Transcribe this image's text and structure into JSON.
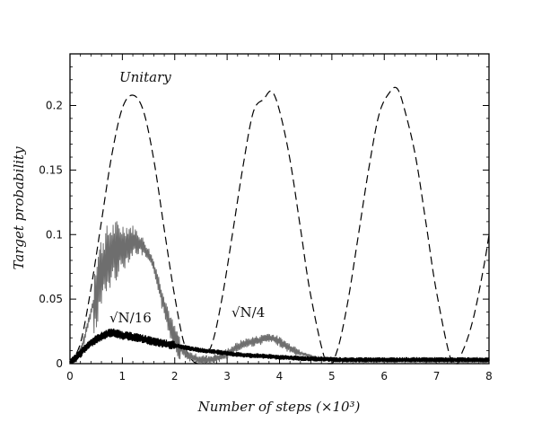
{
  "chart_data": {
    "type": "line",
    "xlabel": "Number of steps (×10³)",
    "ylabel": "Target probability",
    "xlim": [
      0,
      8
    ],
    "ylim": [
      0,
      0.24
    ],
    "xticks": [
      "0",
      "1",
      "2",
      "3",
      "4",
      "5",
      "6",
      "7",
      "8"
    ],
    "yticks": [
      "0",
      "0.05",
      "0.1",
      "0.15",
      "0.2"
    ],
    "annotations": [
      "Unitary",
      "√N/4",
      "√N/16"
    ],
    "grid": false,
    "series": [
      {
        "name": "Unitary",
        "style": "dashed",
        "color": "#000000",
        "x": [
          0,
          0.2,
          0.4,
          0.6,
          0.8,
          1.0,
          1.2,
          1.4,
          1.6,
          1.8,
          2.0,
          2.2,
          2.45,
          2.7,
          2.9,
          3.1,
          3.3,
          3.5,
          3.7,
          3.85,
          4.0,
          4.2,
          4.4,
          4.6,
          4.9,
          5.1,
          5.3,
          5.5,
          5.7,
          5.9,
          6.1,
          6.25,
          6.4,
          6.6,
          6.8,
          7.0,
          7.3,
          7.5,
          7.7,
          7.9,
          8.0
        ],
        "y": [
          0,
          0.016,
          0.058,
          0.11,
          0.162,
          0.198,
          0.208,
          0.196,
          0.158,
          0.104,
          0.052,
          0.013,
          0,
          0.014,
          0.05,
          0.1,
          0.152,
          0.195,
          0.205,
          0.211,
          0.196,
          0.158,
          0.105,
          0.052,
          0,
          0.01,
          0.047,
          0.098,
          0.15,
          0.193,
          0.21,
          0.213,
          0.195,
          0.16,
          0.108,
          0.055,
          0,
          0.01,
          0.035,
          0.075,
          0.1
        ]
      },
      {
        "name": "√N/4",
        "style": "solid-noisy",
        "color": "#6e6e6e",
        "x": [
          0,
          0.2,
          0.4,
          0.6,
          0.8,
          1.0,
          1.2,
          1.4,
          1.6,
          1.8,
          2.0,
          2.2,
          2.5,
          2.8,
          3.0,
          3.3,
          3.6,
          3.8,
          4.0,
          4.2,
          4.5,
          4.8,
          5.2,
          5.6,
          6.0,
          6.4,
          6.8,
          7.2,
          7.6,
          8.0
        ],
        "y": [
          0,
          0.01,
          0.04,
          0.07,
          0.085,
          0.09,
          0.095,
          0.09,
          0.075,
          0.045,
          0.02,
          0.008,
          0.003,
          0.004,
          0.008,
          0.015,
          0.018,
          0.02,
          0.017,
          0.012,
          0.007,
          0.004,
          0.003,
          0.002,
          0.002,
          0.002,
          0.002,
          0.002,
          0.002,
          0.002
        ]
      },
      {
        "name": "√N/16",
        "style": "solid-thick-noisy",
        "color": "#000000",
        "x": [
          0,
          0.2,
          0.4,
          0.6,
          0.8,
          1.0,
          1.3,
          1.6,
          2.0,
          2.4,
          2.8,
          3.2,
          3.6,
          4.0,
          4.4,
          4.8,
          5.2,
          5.6,
          6.0,
          6.4,
          6.8,
          7.2,
          7.6,
          8.0
        ],
        "y": [
          0,
          0.008,
          0.016,
          0.021,
          0.024,
          0.022,
          0.02,
          0.017,
          0.014,
          0.011,
          0.009,
          0.007,
          0.006,
          0.005,
          0.004,
          0.0035,
          0.003,
          0.003,
          0.003,
          0.003,
          0.003,
          0.003,
          0.003,
          0.003
        ]
      }
    ]
  }
}
